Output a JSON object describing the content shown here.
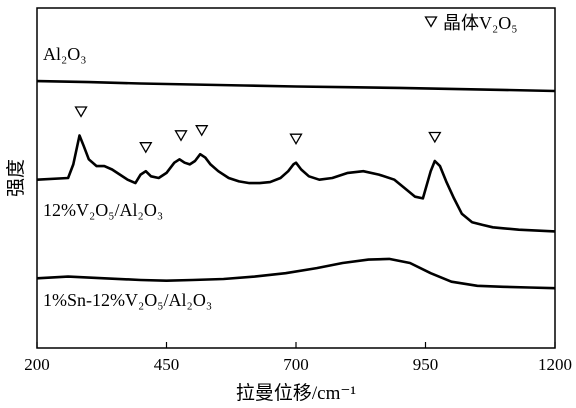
{
  "chart_data": {
    "type": "line",
    "title": "",
    "xlabel": "拉曼位移/cm⁻¹",
    "ylabel": "强度",
    "xlim": [
      200,
      1200
    ],
    "x_ticks": [
      "200",
      "450",
      "700",
      "950",
      "1200"
    ],
    "y_ticks": [],
    "grid": false,
    "legend": {
      "position": "top-right",
      "marker": "triangle-down",
      "text": "晶体V₂O₅"
    },
    "series": [
      {
        "name": "Al₂O₃",
        "x": [
          200,
          300,
          400,
          500,
          600,
          700,
          800,
          900,
          1000,
          1100,
          1200
        ],
        "y": [
          0.785,
          0.782,
          0.778,
          0.775,
          0.772,
          0.769,
          0.767,
          0.765,
          0.762,
          0.759,
          0.756
        ]
      },
      {
        "name": "12%V₂O₅/Al₂O₃",
        "x": [
          200,
          260,
          270,
          282,
          290,
          300,
          315,
          330,
          345,
          360,
          375,
          390,
          400,
          410,
          420,
          435,
          450,
          465,
          475,
          485,
          495,
          505,
          515,
          525,
          535,
          550,
          570,
          590,
          610,
          630,
          650,
          670,
          685,
          695,
          700,
          710,
          725,
          745,
          770,
          800,
          830,
          860,
          890,
          910,
          930,
          945,
          960,
          968,
          978,
          990,
          1005,
          1020,
          1040,
          1060,
          1080,
          1100,
          1130,
          1160,
          1200
        ],
        "y": [
          0.495,
          0.5,
          0.54,
          0.625,
          0.595,
          0.555,
          0.535,
          0.535,
          0.525,
          0.51,
          0.495,
          0.485,
          0.51,
          0.52,
          0.505,
          0.5,
          0.515,
          0.545,
          0.555,
          0.545,
          0.54,
          0.55,
          0.57,
          0.56,
          0.54,
          0.52,
          0.5,
          0.49,
          0.485,
          0.485,
          0.488,
          0.5,
          0.52,
          0.54,
          0.545,
          0.525,
          0.505,
          0.495,
          0.5,
          0.515,
          0.52,
          0.51,
          0.495,
          0.47,
          0.445,
          0.44,
          0.52,
          0.55,
          0.535,
          0.49,
          0.44,
          0.395,
          0.37,
          0.362,
          0.355,
          0.352,
          0.348,
          0.346,
          0.343
        ]
      },
      {
        "name": "1%Sn-12%V₂O₅/Al₂O₃",
        "x": [
          200,
          260,
          330,
          400,
          450,
          500,
          560,
          620,
          680,
          740,
          790,
          840,
          880,
          920,
          960,
          1000,
          1050,
          1100,
          1150,
          1200
        ],
        "y": [
          0.205,
          0.21,
          0.205,
          0.2,
          0.198,
          0.2,
          0.203,
          0.21,
          0.22,
          0.235,
          0.25,
          0.26,
          0.262,
          0.25,
          0.22,
          0.195,
          0.183,
          0.18,
          0.178,
          0.176
        ]
      }
    ],
    "annotations": [
      {
        "x": 285,
        "y": 0.625,
        "marker": "triangle-down"
      },
      {
        "x": 410,
        "y": 0.52,
        "marker": "triangle-down"
      },
      {
        "x": 478,
        "y": 0.555,
        "marker": "triangle-down"
      },
      {
        "x": 518,
        "y": 0.57,
        "marker": "triangle-down"
      },
      {
        "x": 700,
        "y": 0.545,
        "marker": "triangle-down"
      },
      {
        "x": 968,
        "y": 0.55,
        "marker": "triangle-down"
      }
    ]
  }
}
